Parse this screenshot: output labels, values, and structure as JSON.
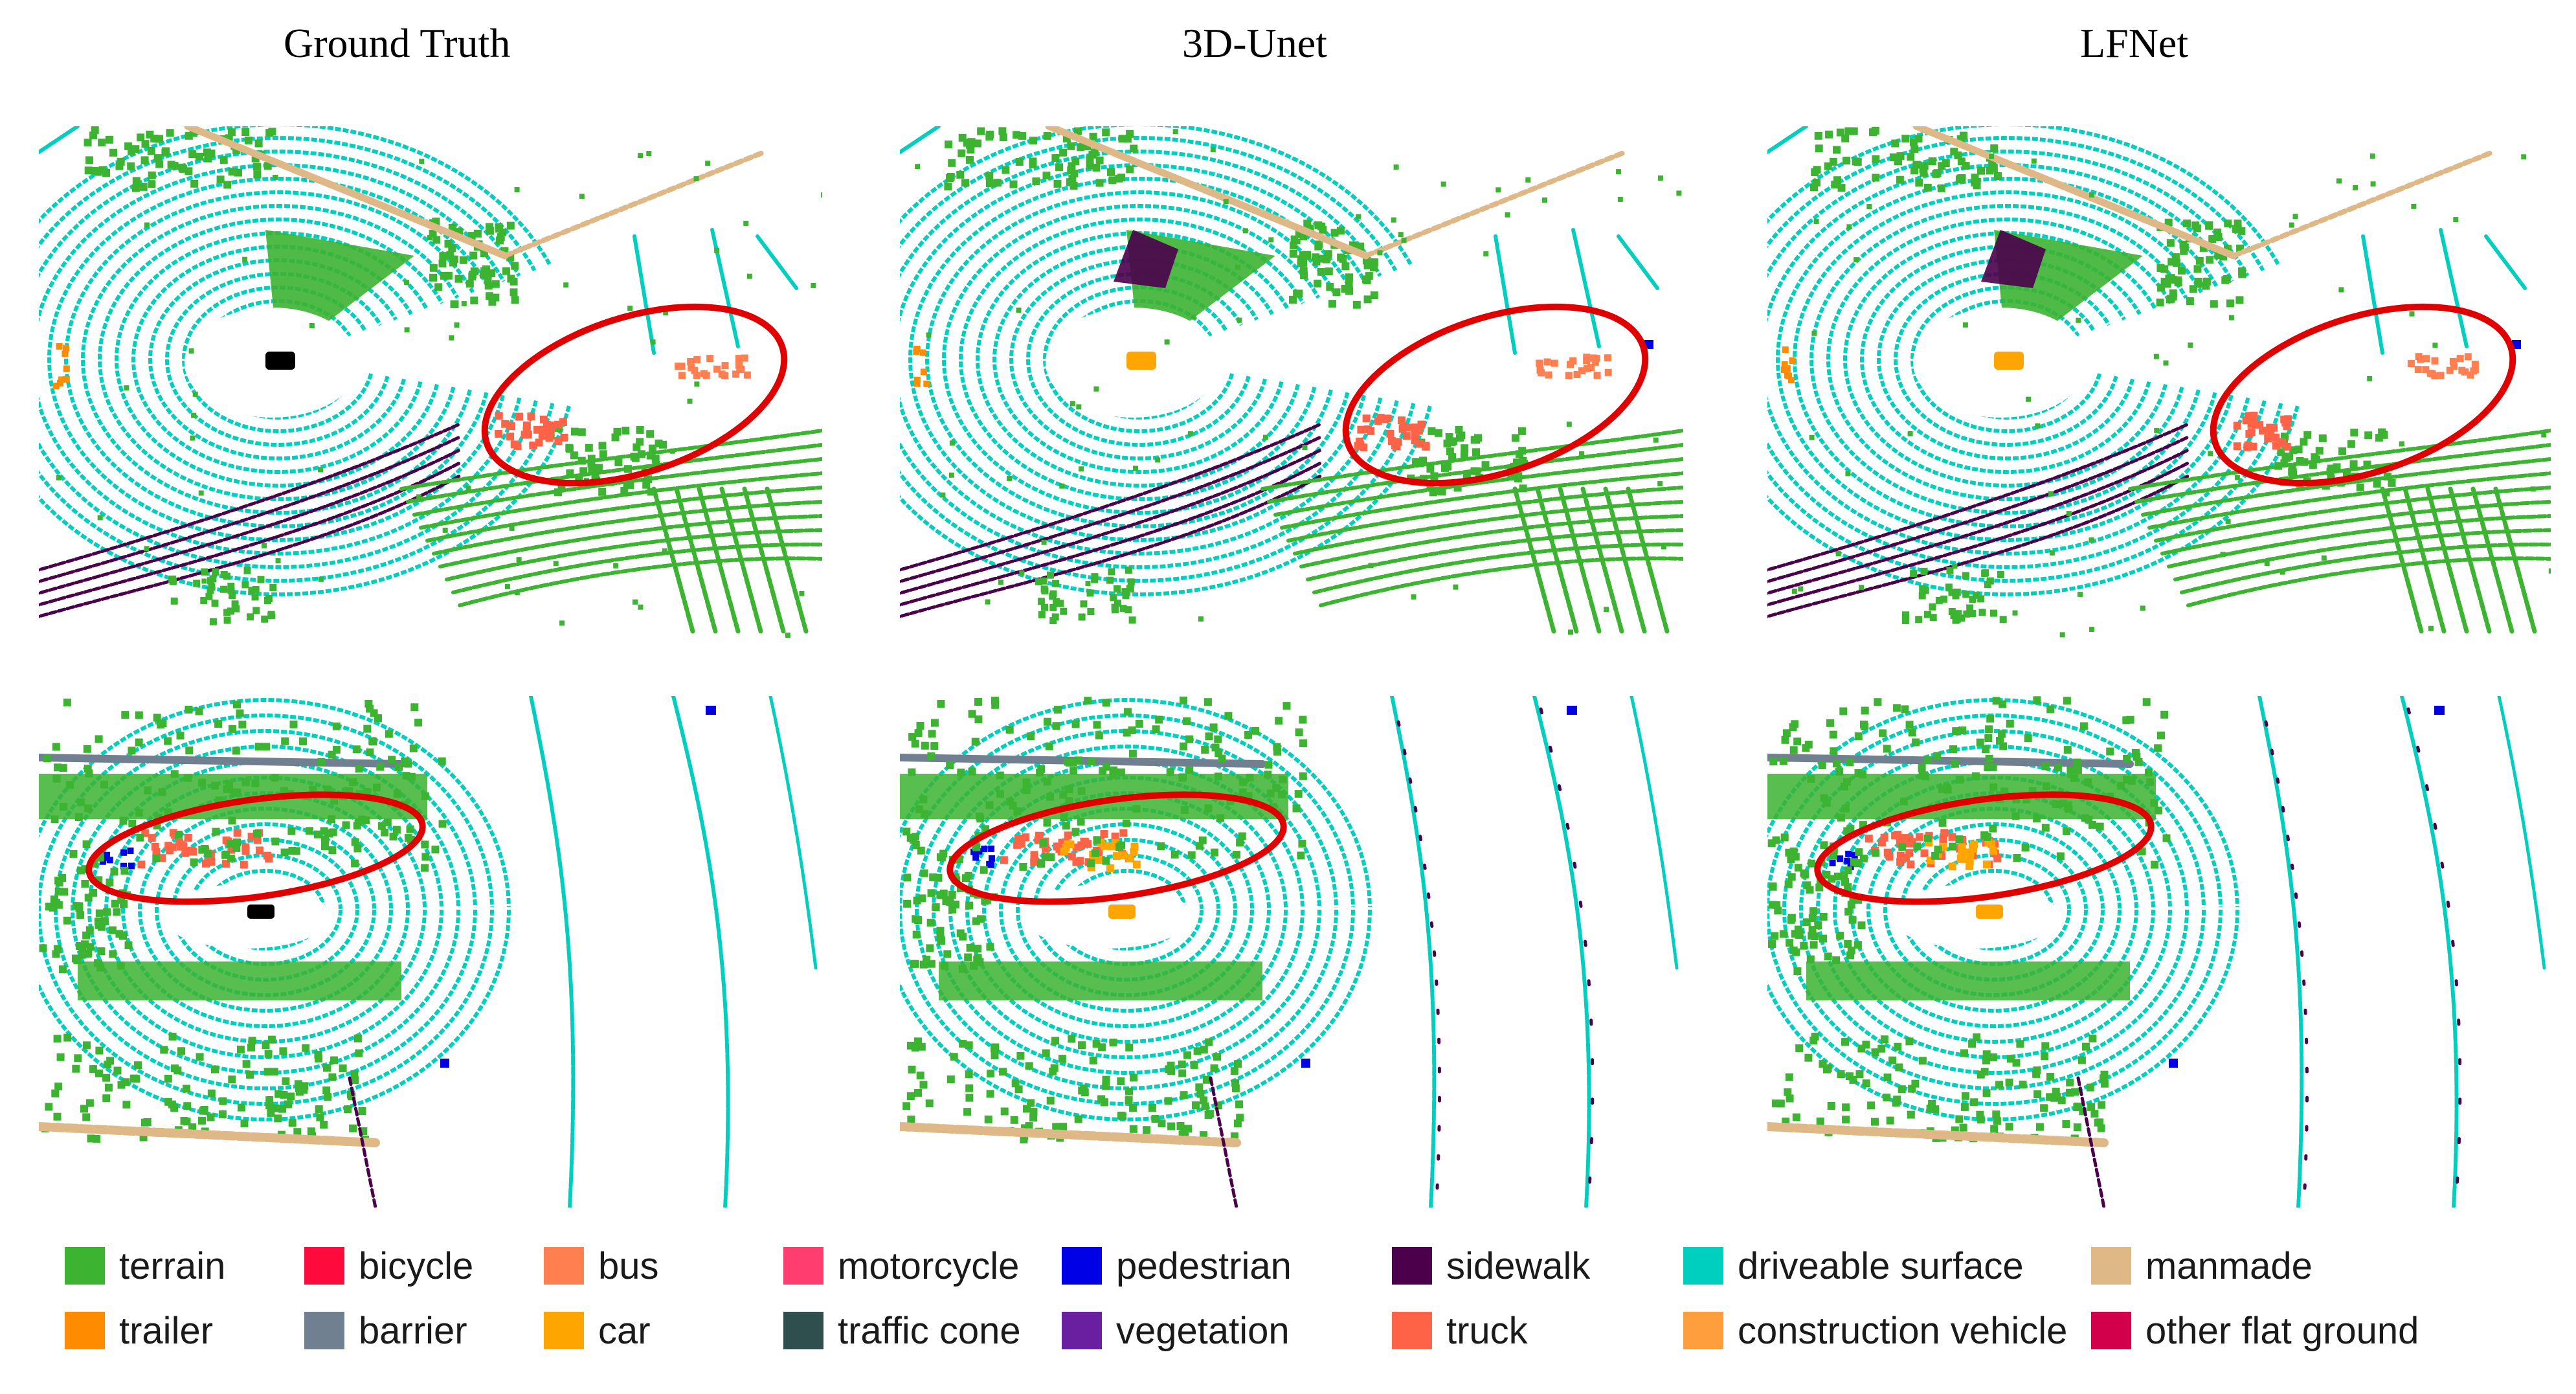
{
  "columns": [
    {
      "title": "Ground Truth"
    },
    {
      "title": "3D-Unet"
    },
    {
      "title": "LFNet"
    }
  ],
  "legend": [
    {
      "label": "terrain",
      "color": "#3cb331"
    },
    {
      "label": "bicycle",
      "color": "#ff0a3c"
    },
    {
      "label": "bus",
      "color": "#ff7f50"
    },
    {
      "label": "motorcycle",
      "color": "#ff3d6e"
    },
    {
      "label": "pedestrian",
      "color": "#0000e6"
    },
    {
      "label": "sidewalk",
      "color": "#4b004b"
    },
    {
      "label": "driveable surface",
      "color": "#00cfbf"
    },
    {
      "label": "manmade",
      "color": "#deb887"
    },
    {
      "label": "trailer",
      "color": "#ff8c00"
    },
    {
      "label": "barrier",
      "color": "#708090"
    },
    {
      "label": "car",
      "color": "#ffa500"
    },
    {
      "label": "traffic cone",
      "color": "#2f4f4f"
    },
    {
      "label": "vegetation",
      "color": "#6a1ea0"
    },
    {
      "label": "truck",
      "color": "#ff6347"
    },
    {
      "label": "construction vehicle",
      "color": "#ff9e3d"
    },
    {
      "label": "other flat ground",
      "color": "#d2004b"
    }
  ],
  "highlight_color": "#e00000"
}
